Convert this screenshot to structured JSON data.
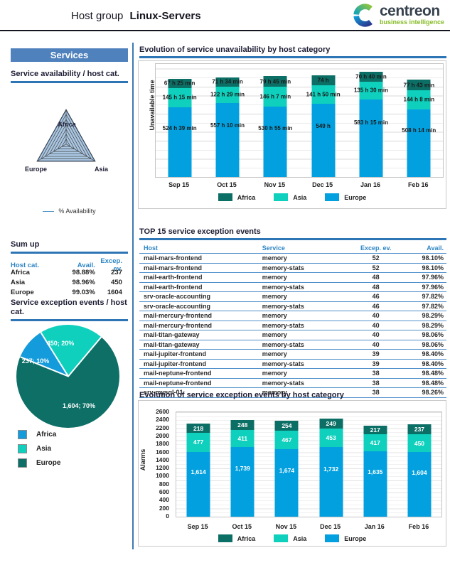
{
  "header": {
    "title_prefix": "Host group",
    "title_bold": "Linux-Servers",
    "brand": "centreon",
    "brand_tagline": "business intelligence"
  },
  "sidebar": {
    "section_title": "Services",
    "radar_legend_label": "% Availability",
    "sumup": {
      "heading": "Sum up",
      "columns": [
        "Host cat.",
        "Avail.",
        "Excep. ev."
      ],
      "rows": [
        [
          "Africa",
          "98.88%",
          "237"
        ],
        [
          "Asia",
          "98.96%",
          "450"
        ],
        [
          "Europe",
          "99.03%",
          "1604"
        ]
      ]
    },
    "pie_legend": [
      "Africa",
      "Asia",
      "Europe"
    ]
  },
  "top15": {
    "heading": "TOP 15 service exception events",
    "columns": [
      "Host",
      "Service",
      "Excep. ev.",
      "Avail."
    ],
    "rows": [
      [
        "mail-mars-frontend",
        "memory",
        "52",
        "98.10%"
      ],
      [
        "mail-mars-frontend",
        "memory-stats",
        "52",
        "98.10%"
      ],
      [
        "mail-earth-frontend",
        "memory",
        "48",
        "97.96%"
      ],
      [
        "mail-earth-frontend",
        "memory-stats",
        "48",
        "97.96%"
      ],
      [
        "srv-oracle-accounting",
        "memory",
        "46",
        "97.82%"
      ],
      [
        "srv-oracle-accounting",
        "memory-stats",
        "46",
        "97.82%"
      ],
      [
        "mail-mercury-frontend",
        "memory",
        "40",
        "98.29%"
      ],
      [
        "mail-mercury-frontend",
        "memory-stats",
        "40",
        "98.29%"
      ],
      [
        "mail-titan-gateway",
        "memory",
        "40",
        "98.06%"
      ],
      [
        "mail-titan-gateway",
        "memory-stats",
        "40",
        "98.06%"
      ],
      [
        "mail-jupiter-frontend",
        "memory",
        "39",
        "98.40%"
      ],
      [
        "mail-jupiter-frontend",
        "memory-stats",
        "39",
        "98.40%"
      ],
      [
        "mail-neptune-frontend",
        "memory",
        "38",
        "98.48%"
      ],
      [
        "mail-neptune-frontend",
        "memory-stats",
        "38",
        "98.48%"
      ],
      [
        "srv-mysql-01",
        "memory",
        "38",
        "98.26%"
      ]
    ]
  },
  "chart_data": [
    {
      "id": "service-availability-radar",
      "type": "radar",
      "title": "Service availability / host cat.",
      "axes": [
        "Africa",
        "Europe",
        "Asia"
      ],
      "series": [
        {
          "name": "% Availability",
          "values": [
            98.88,
            99.03,
            98.96
          ]
        }
      ]
    },
    {
      "id": "service-exception-events-pie",
      "type": "pie",
      "title": "Service exception events / host cat.",
      "slices": [
        {
          "label": "Africa",
          "value": 237,
          "pct": 10,
          "text": "237; 10%"
        },
        {
          "label": "Asia",
          "value": 450,
          "pct": 20,
          "text": "450; 20%"
        },
        {
          "label": "Europe",
          "value": 1604,
          "pct": 70,
          "text": "1,604; 70%"
        }
      ],
      "legend_position": "bottom-left"
    },
    {
      "id": "unavailability-by-host-category",
      "type": "bar",
      "stacked": true,
      "title": "Evolution of service unavailability by host category",
      "ylabel": "Unavailable time",
      "unit": "hours",
      "categories": [
        "Sep 15",
        "Oct 15",
        "Nov 15",
        "Dec 15",
        "Jan 16",
        "Feb 16"
      ],
      "series": [
        {
          "name": "Africa",
          "values": [
            67.42,
            71.57,
            79.75,
            74,
            70.67,
            77.72
          ],
          "labels": [
            "67 h 25 min",
            "71 h 34 min",
            "79 h 45 min",
            "74 h",
            "70 h 40 min",
            "77 h 43 min"
          ]
        },
        {
          "name": "Asia",
          "values": [
            145.25,
            122.48,
            146.12,
            141.83,
            135.5,
            144.13
          ],
          "labels": [
            "145 h 15 min",
            "122 h 29 min",
            "146 h 7 min",
            "141 h 50 min",
            "135 h 30 min",
            "144 h 8 min"
          ]
        },
        {
          "name": "Europe",
          "values": [
            524.65,
            557.17,
            530.92,
            549,
            583.25,
            508.23
          ],
          "labels": [
            "524 h 39 min",
            "557 h 10 min",
            "530 h 55 min",
            "549 h",
            "583 h 15 min",
            "508 h 14 min"
          ]
        }
      ],
      "stack_order_bottom_to_top": [
        "Europe",
        "Asia",
        "Africa"
      ],
      "legend": [
        "Africa",
        "Asia",
        "Europe"
      ],
      "grid": true
    },
    {
      "id": "exception-events-by-host-category",
      "type": "bar",
      "stacked": true,
      "title": "Evolution of service exception events by host category",
      "ylabel": "Alarms",
      "ylim": [
        0,
        2600
      ],
      "ytick_step": 200,
      "categories": [
        "Sep 15",
        "Oct 15",
        "Nov 15",
        "Dec 15",
        "Jan 16",
        "Feb 16"
      ],
      "series": [
        {
          "name": "Africa",
          "values": [
            218,
            248,
            254,
            249,
            217,
            237
          ],
          "labels": [
            "218",
            "248",
            "254",
            "249",
            "217",
            "237"
          ]
        },
        {
          "name": "Asia",
          "values": [
            477,
            411,
            467,
            453,
            417,
            450
          ],
          "labels": [
            "477",
            "411",
            "467",
            "453",
            "417",
            "450"
          ]
        },
        {
          "name": "Europe",
          "values": [
            1614,
            1739,
            1674,
            1732,
            1635,
            1604
          ],
          "labels": [
            "1,614",
            "1,739",
            "1,674",
            "1,732",
            "1,635",
            "1,604"
          ]
        }
      ],
      "stack_order_bottom_to_top": [
        "Europe",
        "Asia",
        "Africa"
      ],
      "legend": [
        "Africa",
        "Asia",
        "Europe"
      ],
      "grid": true
    }
  ],
  "colors": {
    "accent_blue": "#2e75b6",
    "table_header_blue": "#2e86c5",
    "services_box_bg": "#4f81bd",
    "bar_africa": "#0c6f66",
    "bar_asia": "#0ed0bd",
    "bar_europe": "#02a0df",
    "pie_africa": "#149bdb",
    "pie_asia": "#0ed0bd",
    "pie_europe": "#0d6f66",
    "radar_fill": "#a9c6e2",
    "logo_green": "#86bc25",
    "logo_dark": "#37424e"
  }
}
